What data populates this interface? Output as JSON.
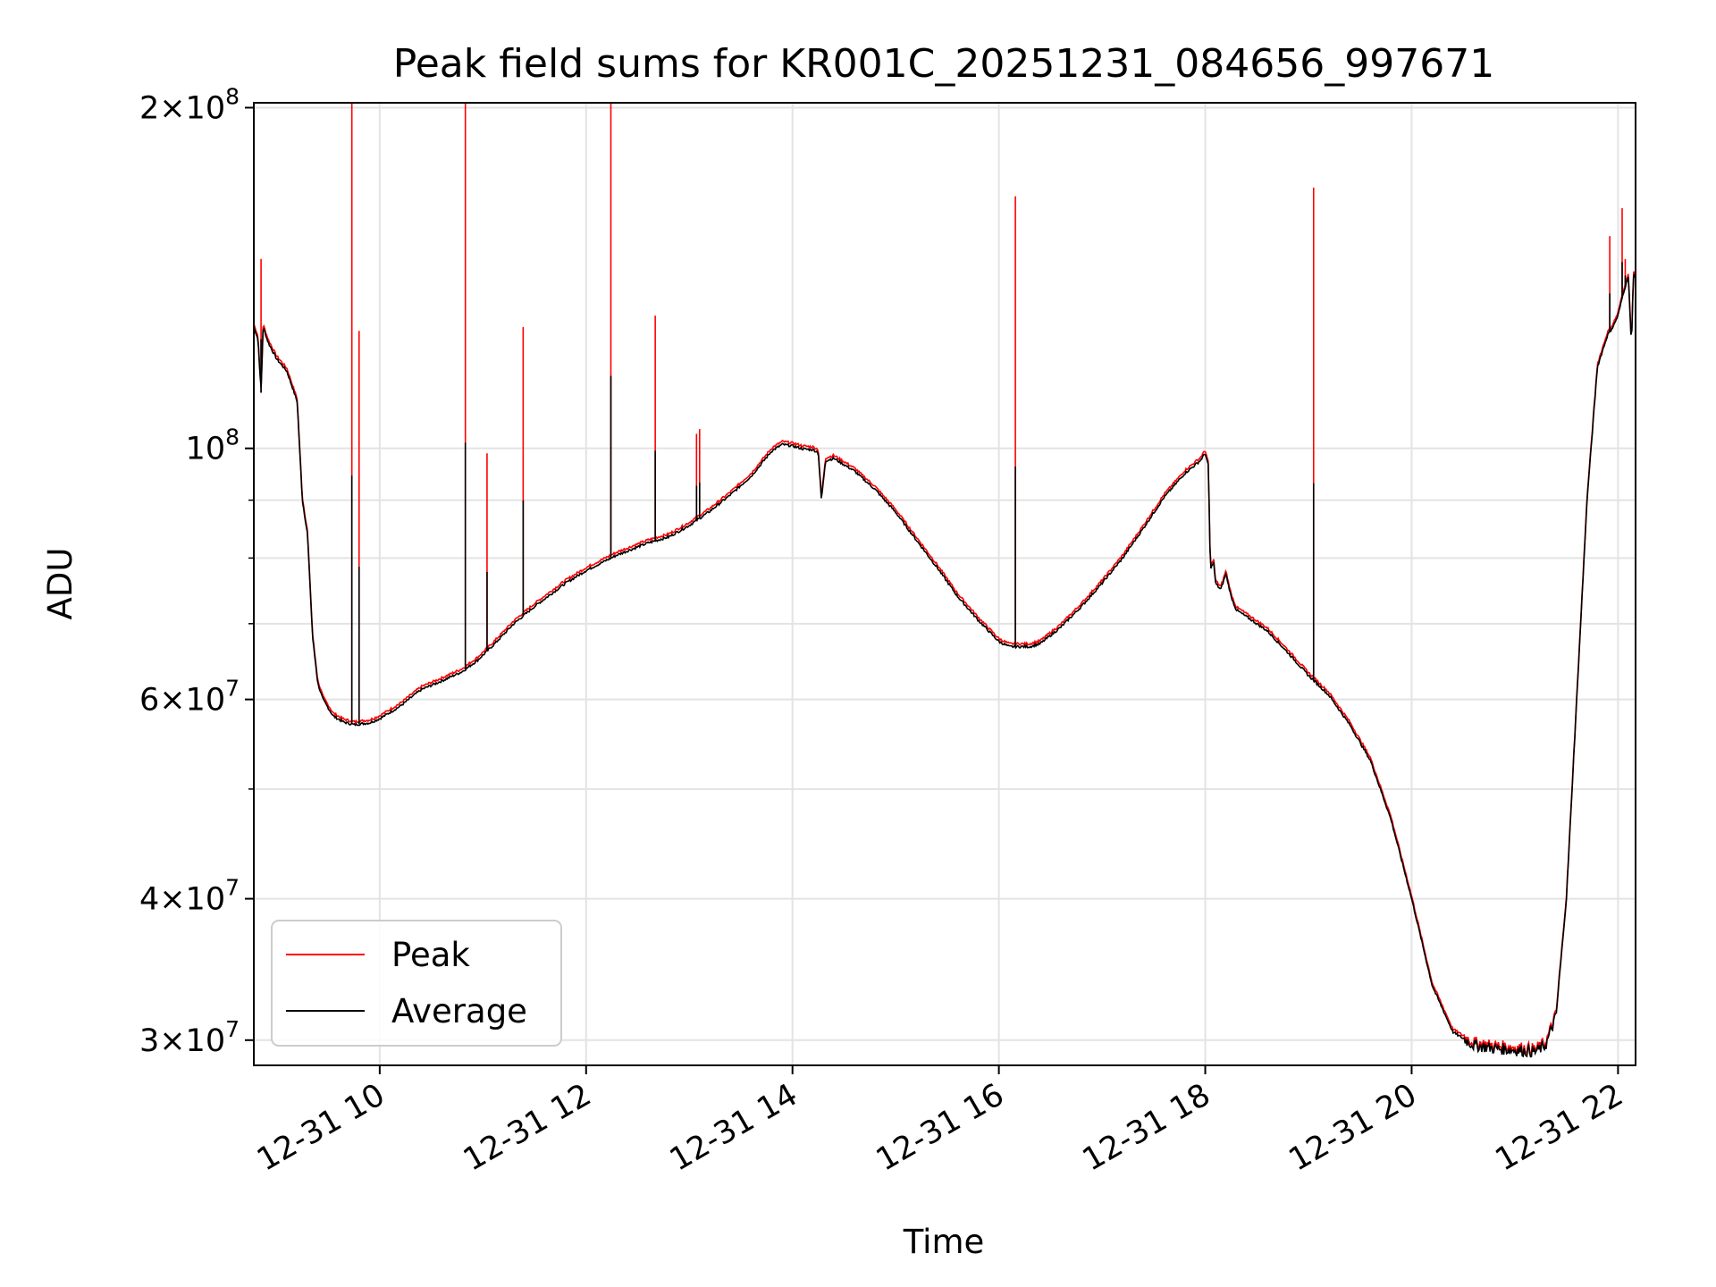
{
  "chart_data": {
    "type": "line",
    "title": "Peak field sums for KR001C_20251231_084656_997671",
    "xlabel": "Time",
    "ylabel": "ADU",
    "yscale": "log",
    "xlim_hours": [
      8.78,
      22.17
    ],
    "ylim": [
      28500000,
      202000000
    ],
    "grid": true,
    "legend_position": "lower-left",
    "x_ticks": [
      {
        "value": 10,
        "label": "12-31 10"
      },
      {
        "value": 12,
        "label": "12-31 12"
      },
      {
        "value": 14,
        "label": "12-31 14"
      },
      {
        "value": 16,
        "label": "12-31 16"
      },
      {
        "value": 18,
        "label": "12-31 18"
      },
      {
        "value": 20,
        "label": "12-31 20"
      },
      {
        "value": 22,
        "label": "12-31 22"
      }
    ],
    "y_ticks": [
      {
        "value": 30000000,
        "mant": "3",
        "exp": "7"
      },
      {
        "value": 40000000,
        "mant": "4",
        "exp": "7"
      },
      {
        "value": 60000000,
        "mant": "6",
        "exp": "7"
      },
      {
        "value": 100000000,
        "mant": "",
        "exp": "8"
      },
      {
        "value": 200000000,
        "mant": "2",
        "exp": "8"
      }
    ],
    "y_minor_ticks": [
      50000000,
      70000000,
      80000000,
      90000000
    ],
    "series": [
      {
        "name": "Peak",
        "color": "#ff0000",
        "baseline": "same as Average",
        "spikes": [
          {
            "x": 8.85,
            "y": 147000000
          },
          {
            "x": 9.73,
            "y": 210000000
          },
          {
            "x": 9.8,
            "y": 127000000
          },
          {
            "x": 10.83,
            "y": 202000000
          },
          {
            "x": 11.04,
            "y": 99000000
          },
          {
            "x": 11.39,
            "y": 128000000
          },
          {
            "x": 12.24,
            "y": 210000000
          },
          {
            "x": 12.67,
            "y": 131000000
          },
          {
            "x": 13.07,
            "y": 103000000
          },
          {
            "x": 13.1,
            "y": 104000000
          },
          {
            "x": 16.16,
            "y": 167000000
          },
          {
            "x": 19.05,
            "y": 170000000
          },
          {
            "x": 21.92,
            "y": 154000000
          },
          {
            "x": 22.04,
            "y": 163000000
          },
          {
            "x": 22.07,
            "y": 147000000
          }
        ]
      },
      {
        "name": "Average",
        "color": "#000000",
        "x": [
          8.78,
          8.82,
          8.85,
          8.87,
          8.92,
          9.0,
          9.1,
          9.2,
          9.25,
          9.3,
          9.35,
          9.4,
          9.45,
          9.55,
          9.65,
          9.75,
          9.9,
          10.0,
          10.2,
          10.4,
          10.6,
          10.8,
          10.95,
          11.1,
          11.3,
          11.5,
          11.8,
          12.0,
          12.3,
          12.6,
          12.8,
          13.0,
          13.2,
          13.4,
          13.6,
          13.8,
          13.9,
          14.0,
          14.1,
          14.2,
          14.25,
          14.28,
          14.32,
          14.4,
          14.6,
          14.8,
          15.0,
          15.2,
          15.4,
          15.6,
          15.8,
          16.0,
          16.1,
          16.2,
          16.3,
          16.4,
          16.6,
          16.8,
          17.0,
          17.2,
          17.4,
          17.6,
          17.8,
          17.95,
          18.0,
          18.03,
          18.05,
          18.08,
          18.1,
          18.15,
          18.2,
          18.25,
          18.3,
          18.4,
          18.6,
          18.8,
          19.0,
          19.2,
          19.4,
          19.6,
          19.8,
          20.0,
          20.2,
          20.4,
          20.6,
          20.8,
          21.0,
          21.2,
          21.3,
          21.4,
          21.5,
          21.6,
          21.7,
          21.8,
          21.85,
          21.9,
          21.95,
          22.0,
          22.05,
          22.1,
          22.13,
          22.15,
          22.17
        ],
        "y": [
          128000000,
          125000000,
          112000000,
          128000000,
          124000000,
          120000000,
          117000000,
          110000000,
          90000000,
          84000000,
          68000000,
          62000000,
          60000000,
          58000000,
          57300000,
          57000000,
          57200000,
          57700000,
          59200000,
          61200000,
          62300000,
          63500000,
          65000000,
          67000000,
          70000000,
          72500000,
          76000000,
          78000000,
          80500000,
          82500000,
          83500000,
          85500000,
          88000000,
          91000000,
          94500000,
          99500000,
          100800000,
          100500000,
          99900000,
          99700000,
          99200000,
          90000000,
          97500000,
          98000000,
          95500000,
          92000000,
          87800000,
          83000000,
          78500000,
          74000000,
          70500000,
          67500000,
          66800000,
          66800000,
          66800000,
          67200000,
          69500000,
          72500000,
          76000000,
          80000000,
          85000000,
          90500000,
          95000000,
          97500000,
          99000000,
          96500000,
          78000000,
          79500000,
          76000000,
          75000000,
          77500000,
          74000000,
          72000000,
          71000000,
          69000000,
          66000000,
          63000000,
          60500000,
          57000000,
          53000000,
          47000000,
          40000000,
          33500000,
          30500000,
          29700000,
          29500000,
          29400000,
          29300000,
          29700000,
          31500000,
          40000000,
          60000000,
          90000000,
          118000000,
          122000000,
          126000000,
          128000000,
          131000000,
          137000000,
          142000000,
          123000000,
          143000000,
          141000000
        ]
      }
    ]
  }
}
